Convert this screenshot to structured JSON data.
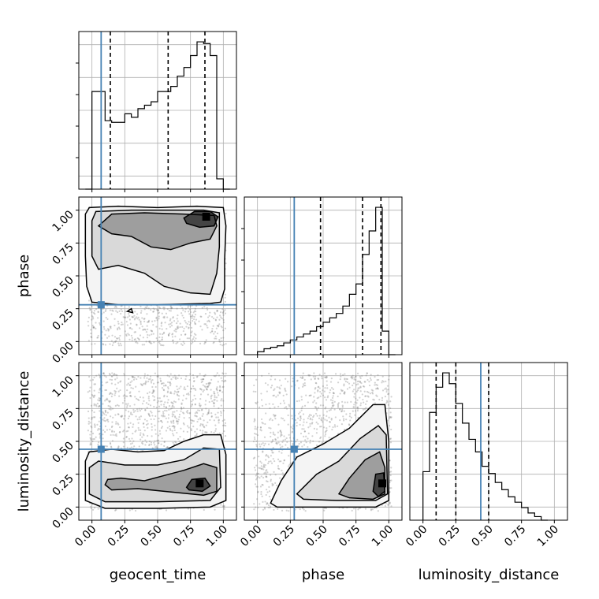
{
  "chart_data": {
    "type": "corner",
    "parameters": [
      "geocent_time",
      "phase",
      "luminosity_distance"
    ],
    "axis_range": [
      -0.1,
      1.1
    ],
    "ticks": [
      0.0,
      0.25,
      0.5,
      0.75,
      1.0
    ],
    "tick_labels": [
      "0.00",
      "0.25",
      "0.50",
      "0.75",
      "1.00"
    ],
    "grid": true,
    "truths": {
      "geocent_time": 0.07,
      "phase": 0.28,
      "luminosity_distance": 0.44
    },
    "quantiles": {
      "geocent_time": [
        0.14,
        0.58,
        0.86
      ],
      "phase": [
        0.48,
        0.8,
        0.94
      ],
      "luminosity_distance": [
        0.1,
        0.25,
        0.5
      ]
    },
    "histograms": {
      "geocent_time": {
        "edges": [
          -0.05,
          0.0,
          0.05,
          0.1,
          0.15,
          0.2,
          0.25,
          0.3,
          0.35,
          0.4,
          0.45,
          0.5,
          0.55,
          0.6,
          0.65,
          0.7,
          0.75,
          0.8,
          0.85,
          0.9,
          0.95,
          1.0,
          1.05
        ],
        "counts": [
          0,
          0.57,
          0.57,
          0.4,
          0.39,
          0.39,
          0.44,
          0.42,
          0.47,
          0.49,
          0.51,
          0.57,
          0.57,
          0.6,
          0.66,
          0.71,
          0.78,
          0.86,
          0.85,
          0.78,
          0.06,
          0
        ]
      },
      "phase": {
        "edges": [
          0.0,
          0.05,
          0.1,
          0.15,
          0.2,
          0.25,
          0.3,
          0.35,
          0.4,
          0.45,
          0.5,
          0.55,
          0.6,
          0.65,
          0.7,
          0.75,
          0.8,
          0.85,
          0.9,
          0.95,
          1.0,
          1.05
        ],
        "counts": [
          0.02,
          0.04,
          0.05,
          0.06,
          0.08,
          0.1,
          0.12,
          0.14,
          0.16,
          0.19,
          0.22,
          0.25,
          0.28,
          0.33,
          0.41,
          0.48,
          0.68,
          0.84,
          1.0,
          0.16,
          0
        ]
      },
      "luminosity_distance": {
        "edges": [
          0.0,
          0.05,
          0.1,
          0.15,
          0.2,
          0.25,
          0.3,
          0.35,
          0.4,
          0.45,
          0.5,
          0.55,
          0.6,
          0.65,
          0.7,
          0.75,
          0.8,
          0.85,
          0.9,
          0.95
        ],
        "counts": [
          0.27,
          0.6,
          0.74,
          0.82,
          0.76,
          0.65,
          0.54,
          0.45,
          0.38,
          0.3,
          0.26,
          0.21,
          0.17,
          0.13,
          0.1,
          0.07,
          0.04,
          0.02,
          0
        ]
      }
    },
    "pairs": [
      {
        "x": "geocent_time",
        "y": "phase",
        "density_peak": [
          0.87,
          0.95
        ],
        "contours": [
          [
            [
              -0.05,
              0.97
            ],
            [
              -0.02,
              1.02
            ],
            [
              0.2,
              1.03
            ],
            [
              0.5,
              1.02
            ],
            [
              0.8,
              1.03
            ],
            [
              1.0,
              1.02
            ],
            [
              1.02,
              0.88
            ],
            [
              1.01,
              0.62
            ],
            [
              1.01,
              0.4
            ],
            [
              0.98,
              0.3
            ],
            [
              0.9,
              0.29
            ],
            [
              0.5,
              0.28
            ],
            [
              0.2,
              0.28
            ],
            [
              0.0,
              0.3
            ],
            [
              -0.04,
              0.42
            ],
            [
              -0.05,
              0.65
            ],
            [
              -0.05,
              0.97
            ]
          ],
          [
            [
              0.0,
              0.92
            ],
            [
              0.03,
              0.99
            ],
            [
              0.3,
              1.0
            ],
            [
              0.6,
              1.0
            ],
            [
              0.85,
              1.0
            ],
            [
              0.97,
              0.98
            ],
            [
              0.97,
              0.72
            ],
            [
              0.95,
              0.52
            ],
            [
              0.9,
              0.36
            ],
            [
              0.75,
              0.37
            ],
            [
              0.55,
              0.42
            ],
            [
              0.4,
              0.52
            ],
            [
              0.2,
              0.58
            ],
            [
              0.05,
              0.55
            ],
            [
              0.0,
              0.65
            ],
            [
              0.0,
              0.92
            ]
          ],
          [
            [
              0.05,
              0.88
            ],
            [
              0.15,
              0.97
            ],
            [
              0.4,
              0.98
            ],
            [
              0.7,
              0.97
            ],
            [
              0.93,
              0.96
            ],
            [
              0.95,
              0.88
            ],
            [
              0.9,
              0.78
            ],
            [
              0.75,
              0.75
            ],
            [
              0.6,
              0.7
            ],
            [
              0.45,
              0.72
            ],
            [
              0.3,
              0.8
            ],
            [
              0.15,
              0.82
            ],
            [
              0.05,
              0.88
            ]
          ],
          [
            [
              0.7,
              0.94
            ],
            [
              0.78,
              0.99
            ],
            [
              0.9,
              0.99
            ],
            [
              0.96,
              0.95
            ],
            [
              0.93,
              0.88
            ],
            [
              0.82,
              0.87
            ],
            [
              0.72,
              0.9
            ],
            [
              0.7,
              0.94
            ]
          ],
          [
            [
              0.27,
              0.23
            ],
            [
              0.3,
              0.25
            ],
            [
              0.31,
              0.22
            ],
            [
              0.27,
              0.23
            ]
          ]
        ]
      },
      {
        "x": "geocent_time",
        "y": "luminosity_distance",
        "density_peak": [
          0.82,
          0.18
        ],
        "contours": [
          [
            [
              -0.05,
              0.05
            ],
            [
              -0.05,
              0.35
            ],
            [
              -0.02,
              0.42
            ],
            [
              0.15,
              0.44
            ],
            [
              0.35,
              0.42
            ],
            [
              0.55,
              0.43
            ],
            [
              0.7,
              0.5
            ],
            [
              0.85,
              0.55
            ],
            [
              0.98,
              0.55
            ],
            [
              1.02,
              0.4
            ],
            [
              1.02,
              0.05
            ],
            [
              0.9,
              0.0
            ],
            [
              0.5,
              -0.01
            ],
            [
              0.1,
              -0.01
            ],
            [
              -0.05,
              0.05
            ]
          ],
          [
            [
              -0.02,
              0.1
            ],
            [
              -0.02,
              0.3
            ],
            [
              0.05,
              0.35
            ],
            [
              0.25,
              0.32
            ],
            [
              0.5,
              0.32
            ],
            [
              0.7,
              0.36
            ],
            [
              0.85,
              0.45
            ],
            [
              0.97,
              0.44
            ],
            [
              0.98,
              0.15
            ],
            [
              0.9,
              0.05
            ],
            [
              0.5,
              0.04
            ],
            [
              0.1,
              0.04
            ],
            [
              -0.02,
              0.1
            ]
          ],
          [
            [
              0.1,
              0.17
            ],
            [
              0.12,
              0.21
            ],
            [
              0.22,
              0.22
            ],
            [
              0.4,
              0.2
            ],
            [
              0.55,
              0.24
            ],
            [
              0.7,
              0.28
            ],
            [
              0.85,
              0.33
            ],
            [
              0.95,
              0.3
            ],
            [
              0.95,
              0.12
            ],
            [
              0.85,
              0.09
            ],
            [
              0.55,
              0.12
            ],
            [
              0.35,
              0.14
            ],
            [
              0.15,
              0.13
            ],
            [
              0.1,
              0.17
            ]
          ],
          [
            [
              0.72,
              0.15
            ],
            [
              0.76,
              0.21
            ],
            [
              0.86,
              0.22
            ],
            [
              0.9,
              0.16
            ],
            [
              0.84,
              0.12
            ],
            [
              0.74,
              0.13
            ],
            [
              0.72,
              0.15
            ]
          ]
        ]
      },
      {
        "x": "phase",
        "y": "luminosity_distance",
        "density_peak": [
          0.95,
          0.18
        ],
        "contours": [
          [
            [
              0.1,
              0.03
            ],
            [
              0.18,
              0.2
            ],
            [
              0.3,
              0.38
            ],
            [
              0.5,
              0.48
            ],
            [
              0.7,
              0.6
            ],
            [
              0.88,
              0.78
            ],
            [
              0.97,
              0.78
            ],
            [
              1.0,
              0.5
            ],
            [
              1.0,
              0.05
            ],
            [
              0.9,
              0.0
            ],
            [
              0.5,
              0.0
            ],
            [
              0.15,
              0.0
            ],
            [
              0.1,
              0.03
            ]
          ],
          [
            [
              0.3,
              0.1
            ],
            [
              0.45,
              0.25
            ],
            [
              0.62,
              0.35
            ],
            [
              0.78,
              0.52
            ],
            [
              0.92,
              0.62
            ],
            [
              0.98,
              0.55
            ],
            [
              0.99,
              0.1
            ],
            [
              0.9,
              0.05
            ],
            [
              0.6,
              0.05
            ],
            [
              0.35,
              0.06
            ],
            [
              0.3,
              0.1
            ]
          ],
          [
            [
              0.62,
              0.1
            ],
            [
              0.7,
              0.22
            ],
            [
              0.82,
              0.36
            ],
            [
              0.93,
              0.42
            ],
            [
              0.97,
              0.3
            ],
            [
              0.97,
              0.1
            ],
            [
              0.88,
              0.06
            ],
            [
              0.7,
              0.07
            ],
            [
              0.62,
              0.1
            ]
          ],
          [
            [
              0.88,
              0.12
            ],
            [
              0.9,
              0.25
            ],
            [
              0.96,
              0.26
            ],
            [
              0.97,
              0.12
            ],
            [
              0.92,
              0.08
            ],
            [
              0.88,
              0.12
            ]
          ]
        ]
      }
    ]
  }
}
